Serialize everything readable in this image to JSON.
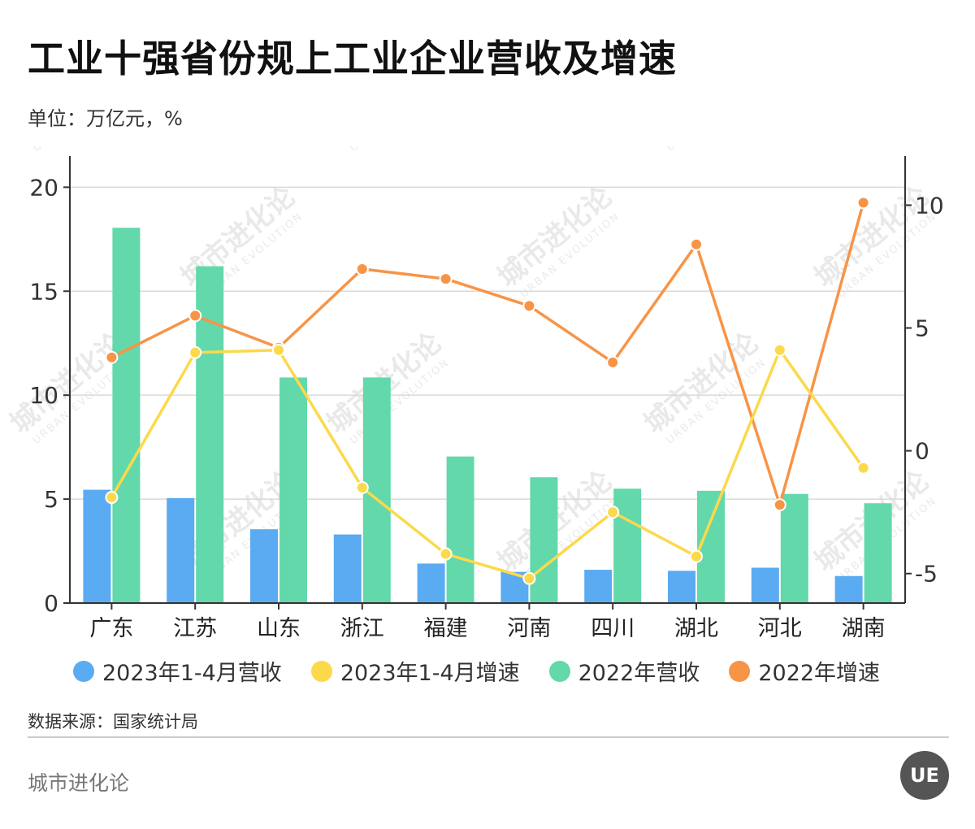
{
  "header": {
    "title": "工业十强省份规上工业企业营收及增速",
    "unit": "单位：万亿元，%"
  },
  "footer": {
    "source": "数据来源：国家统计局",
    "brand": "城市进化论",
    "logo_text": "UE",
    "watermark_text": "城市进化论",
    "watermark_subtext": "URBAN EVOLUTION"
  },
  "colors": {
    "revenue_2023": "#5aabf2",
    "growth_2023": "#fcd94a",
    "revenue_2022": "#63d8ab",
    "growth_2022": "#f89446",
    "grid": "#d9d9d9",
    "axis": "#333333"
  },
  "chart_data": {
    "type": "bar",
    "categories": [
      "广东",
      "江苏",
      "山东",
      "浙江",
      "福建",
      "河南",
      "四川",
      "湖北",
      "河北",
      "湖南"
    ],
    "left_axis": {
      "ylim": [
        0,
        21.5
      ],
      "ticks": [
        0,
        5,
        10,
        15,
        20
      ]
    },
    "right_axis": {
      "ylim": [
        -6.2,
        12
      ],
      "ticks": [
        -5,
        0,
        5,
        10
      ]
    },
    "series": [
      {
        "name": "2023年1-4月营收",
        "kind": "bar",
        "axis": "left",
        "color": "#5aabf2",
        "values": [
          5.45,
          5.05,
          3.55,
          3.3,
          1.9,
          1.5,
          1.6,
          1.55,
          1.7,
          1.3
        ]
      },
      {
        "name": "2023年1-4月增速",
        "kind": "line",
        "axis": "right",
        "color": "#fcd94a",
        "values": [
          -1.9,
          4.0,
          4.1,
          -1.5,
          -4.2,
          -5.2,
          -2.5,
          -4.3,
          4.1,
          -0.7
        ]
      },
      {
        "name": "2022年营收",
        "kind": "bar",
        "axis": "left",
        "color": "#63d8ab",
        "values": [
          18.05,
          16.2,
          10.85,
          10.85,
          7.05,
          6.05,
          5.5,
          5.4,
          5.25,
          4.8
        ]
      },
      {
        "name": "2022年增速",
        "kind": "line",
        "axis": "right",
        "color": "#f89446",
        "values": [
          3.8,
          5.5,
          4.2,
          7.4,
          7.0,
          5.9,
          3.6,
          8.4,
          -2.2,
          10.1
        ]
      }
    ],
    "grid": true,
    "legend_position": "bottom"
  }
}
